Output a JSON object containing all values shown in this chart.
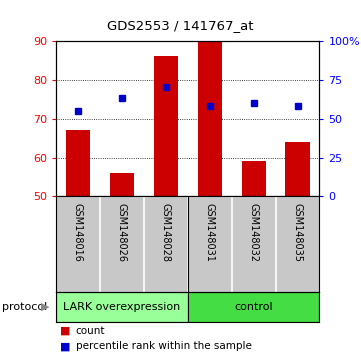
{
  "title": "GDS2553 / 141767_at",
  "categories": [
    "GSM148016",
    "GSM148026",
    "GSM148028",
    "GSM148031",
    "GSM148032",
    "GSM148035"
  ],
  "bar_values": [
    67.0,
    56.0,
    86.0,
    90.0,
    59.0,
    64.0
  ],
  "percentile_values": [
    55,
    63,
    70,
    58,
    60,
    58
  ],
  "bar_color": "#cc0000",
  "dot_color": "#0000cc",
  "ylim_left": [
    50,
    90
  ],
  "ylim_right": [
    0,
    100
  ],
  "yticks_left": [
    50,
    60,
    70,
    80,
    90
  ],
  "yticks_right": [
    0,
    25,
    50,
    75,
    100
  ],
  "ytick_labels_right": [
    "0",
    "25",
    "50",
    "75",
    "100%"
  ],
  "group_labels": [
    "LARK overexpression",
    "control"
  ],
  "group_colors_hex": [
    "#99ff99",
    "#44dd44"
  ],
  "group_ranges": [
    [
      0,
      3
    ],
    [
      3,
      6
    ]
  ],
  "protocol_label": "protocol",
  "bar_width": 0.55,
  "tick_area_color": "#c8c8c8",
  "legend_items": [
    {
      "label": "count",
      "color": "#cc0000"
    },
    {
      "label": "percentile rank within the sample",
      "color": "#0000cc"
    }
  ]
}
